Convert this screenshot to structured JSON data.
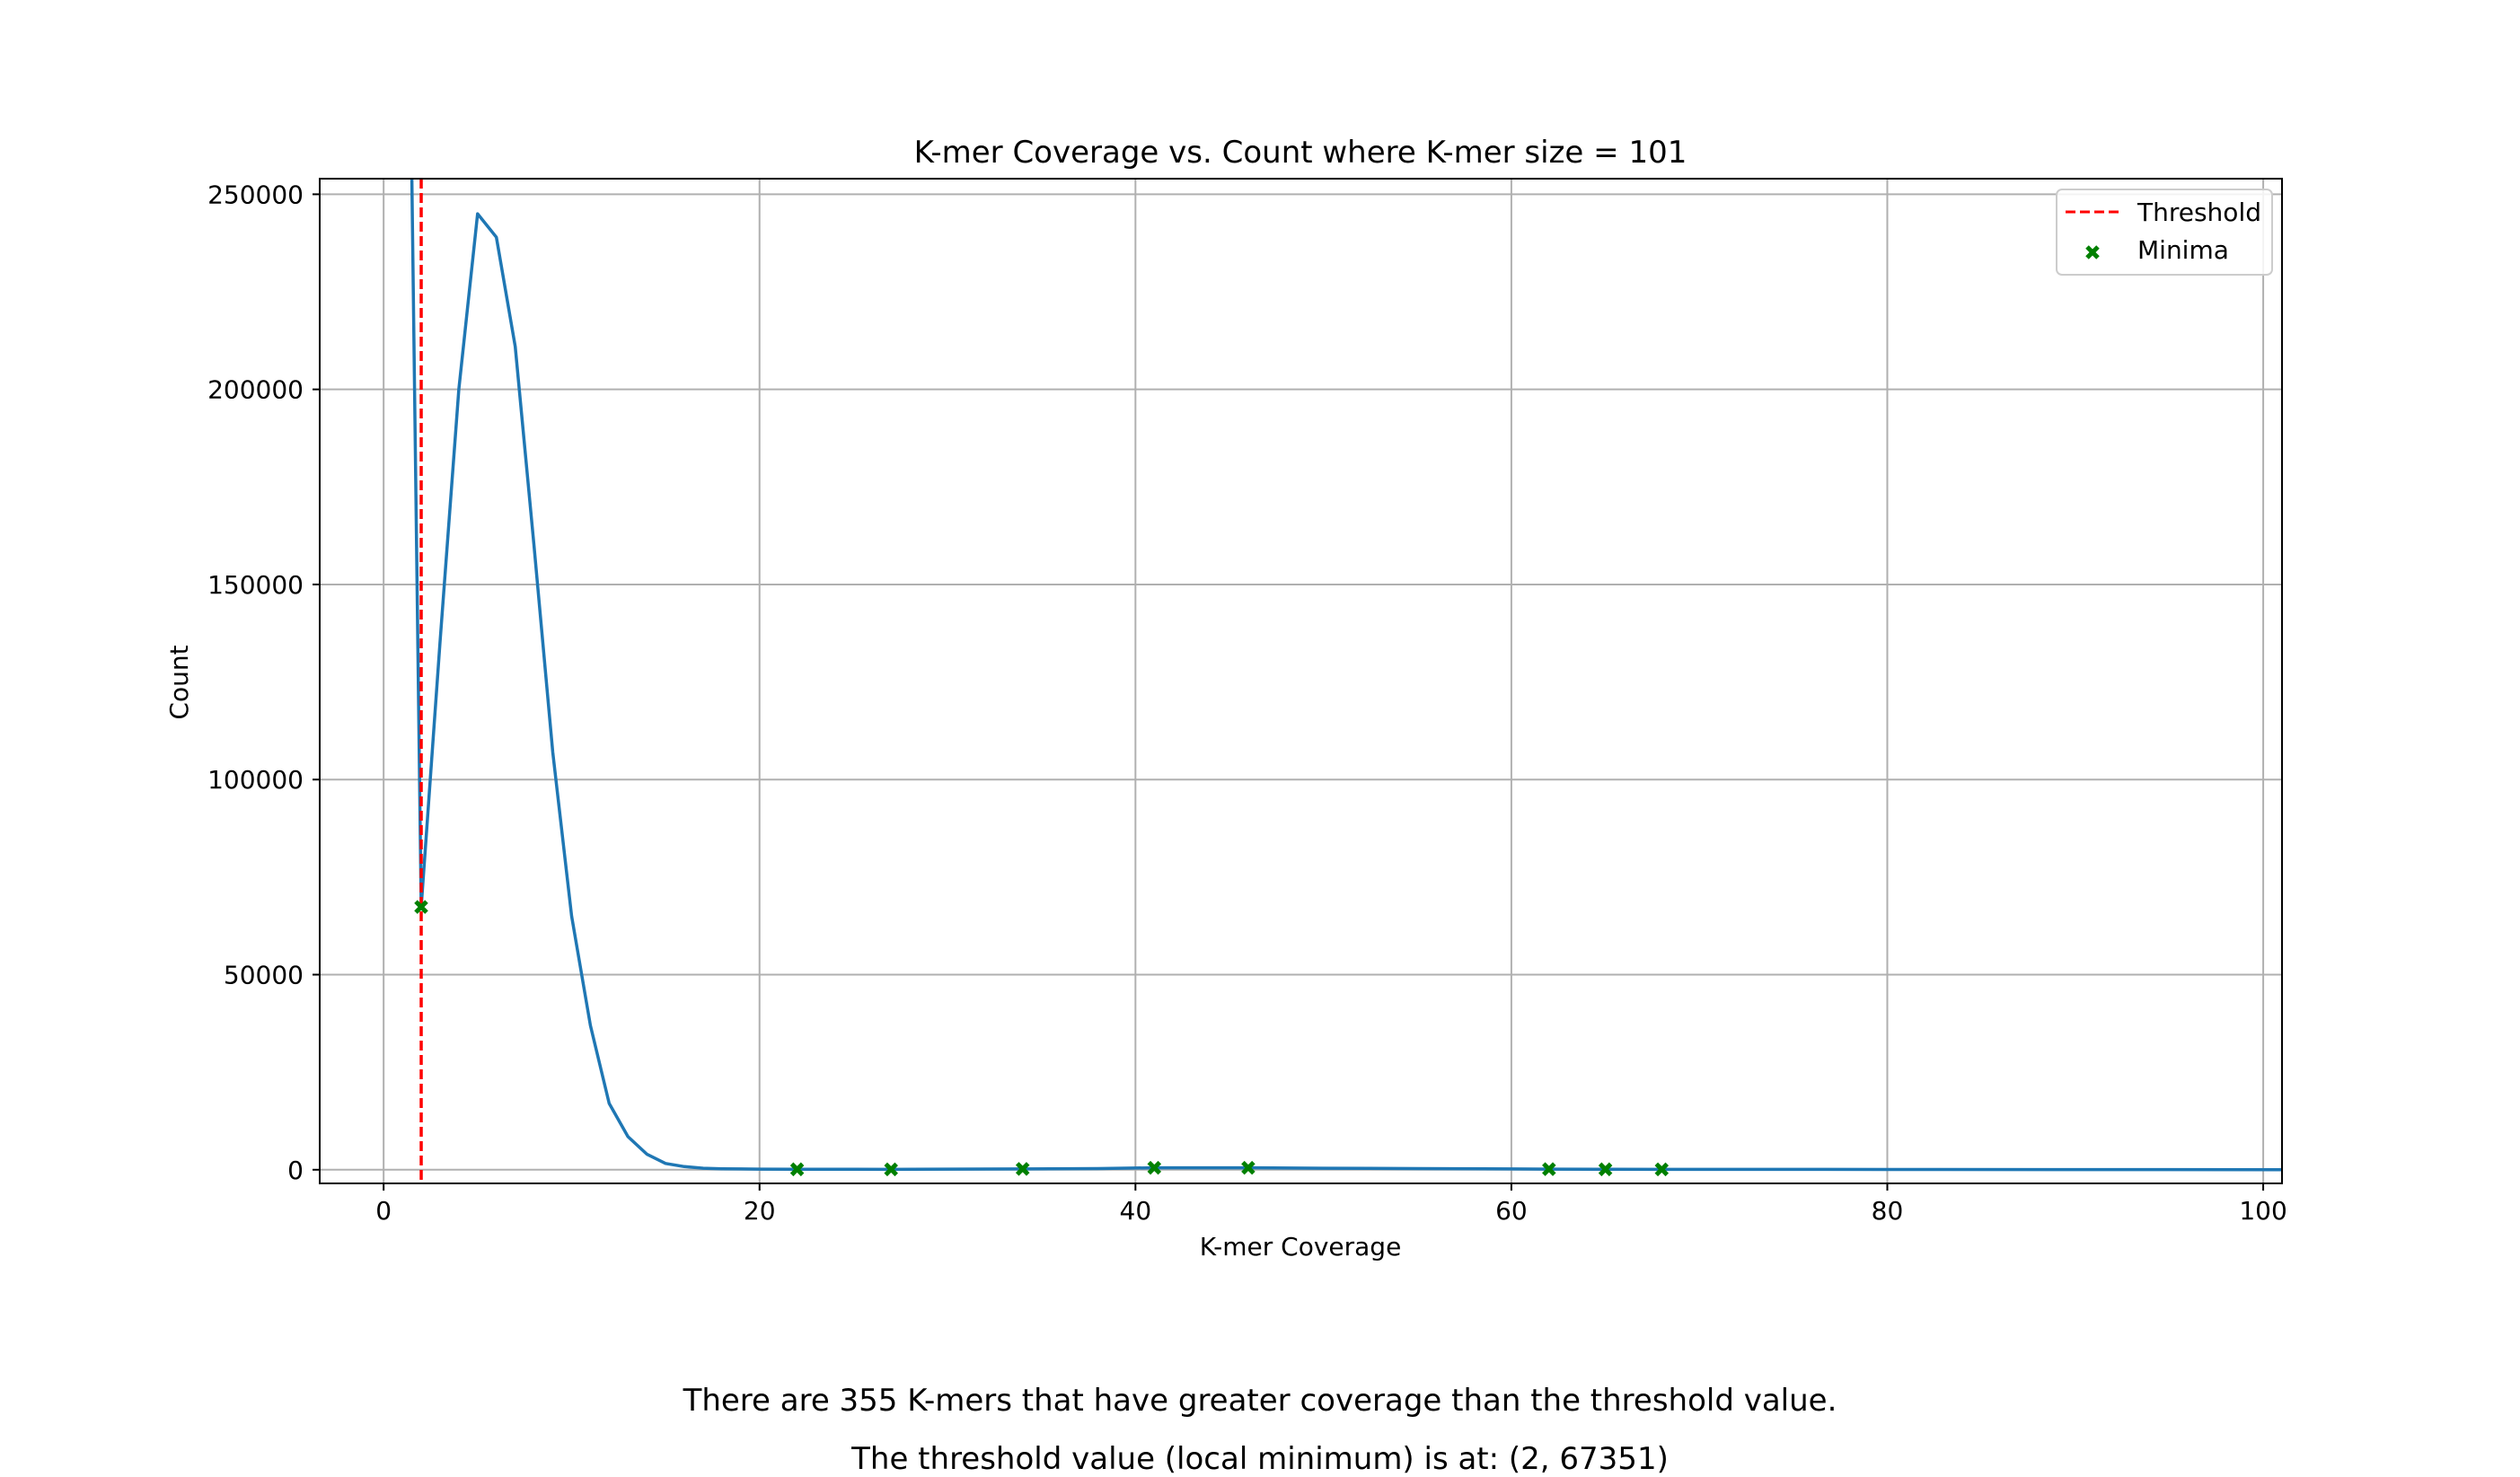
{
  "chart_data": {
    "type": "line",
    "title": "K-mer Coverage vs. Count where K-mer size = 101",
    "xlabel": "K-mer Coverage",
    "ylabel": "Count",
    "xlim": [
      -3.4,
      101
    ],
    "ylim": [
      -3500,
      254000
    ],
    "xticks": [
      0,
      20,
      40,
      60,
      80,
      100
    ],
    "yticks": [
      0,
      50000,
      100000,
      150000,
      200000,
      250000
    ],
    "grid": true,
    "legend": {
      "position": "top-right",
      "entries": [
        {
          "label": "Threshold",
          "style": "dashed-line",
          "color": "#ff0000"
        },
        {
          "label": "Minima",
          "style": "x-marker",
          "color": "#008000"
        }
      ]
    },
    "series": [
      {
        "color": "#1f77b4",
        "x": [
          1.5,
          2,
          3,
          4,
          5,
          6,
          7,
          8,
          9,
          10,
          11,
          12,
          13,
          14,
          15,
          16,
          17,
          18,
          19,
          20,
          22,
          25,
          27,
          30,
          34,
          38,
          41,
          46,
          50,
          55,
          60,
          62,
          65,
          68,
          75,
          80,
          90,
          101
        ],
        "y": [
          254000,
          67351,
          135000,
          200000,
          245000,
          239000,
          211000,
          160000,
          107000,
          65000,
          37000,
          17000,
          8500,
          4000,
          1600,
          800,
          400,
          250,
          200,
          150,
          120,
          110,
          100,
          150,
          200,
          300,
          500,
          500,
          400,
          300,
          200,
          150,
          120,
          100,
          80,
          60,
          40,
          30
        ]
      }
    ],
    "threshold": {
      "x": 2,
      "color": "#ff0000"
    },
    "minima": {
      "color": "#008000",
      "points": [
        [
          2,
          67351
        ],
        [
          22,
          120
        ],
        [
          27,
          100
        ],
        [
          34,
          200
        ],
        [
          41,
          500
        ],
        [
          46,
          500
        ],
        [
          62,
          150
        ],
        [
          65,
          120
        ],
        [
          68,
          100
        ]
      ]
    }
  },
  "captions": {
    "line1": "There are 355 K-mers that have greater coverage than the threshold value.",
    "line2": "The threshold value (local minimum) is at: (2, 67351)"
  }
}
